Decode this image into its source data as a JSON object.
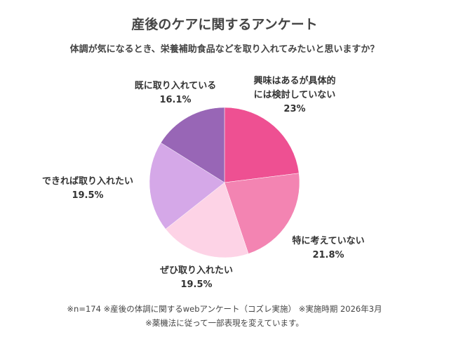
{
  "chart_data": {
    "type": "pie",
    "title": "産後のケアに関するアンケート",
    "subtitle": "体調が気になるとき、栄養補助食品などを取り入れてみたいと思いますか？",
    "slices": [
      {
        "label": "興味はあるが具体的には検討していない",
        "label_lines": [
          "興味はあるが具体的",
          "には検討していない"
        ],
        "value": 23,
        "value_label": "23%",
        "color": "#ee5092"
      },
      {
        "label": "特に考えていない",
        "label_lines": [
          "特に考えていない"
        ],
        "value": 21.8,
        "value_label": "21.8%",
        "color": "#f384b2"
      },
      {
        "label": "ぜひ取り入れたい",
        "label_lines": [
          "ぜひ取り入れたい"
        ],
        "value": 19.5,
        "value_label": "19.5%",
        "color": "#fdd3e6"
      },
      {
        "label": "できれば取り入れたい",
        "label_lines": [
          "できれば取り入れたい"
        ],
        "value": 19.5,
        "value_label": "19.5%",
        "color": "#d5a8e8"
      },
      {
        "label": "既に取り入れている",
        "label_lines": [
          "既に取り入れている"
        ],
        "value": 16.1,
        "value_label": "16.1%",
        "color": "#9866b6"
      }
    ],
    "start": "top",
    "direction": "clockwise"
  },
  "footer": {
    "line1": "※n=174 ※産後の体調に関するwebアンケート（コズレ実施） ※実施時期 2026年3月",
    "line2": "※薬機法に従って一部表現を変えています。"
  }
}
